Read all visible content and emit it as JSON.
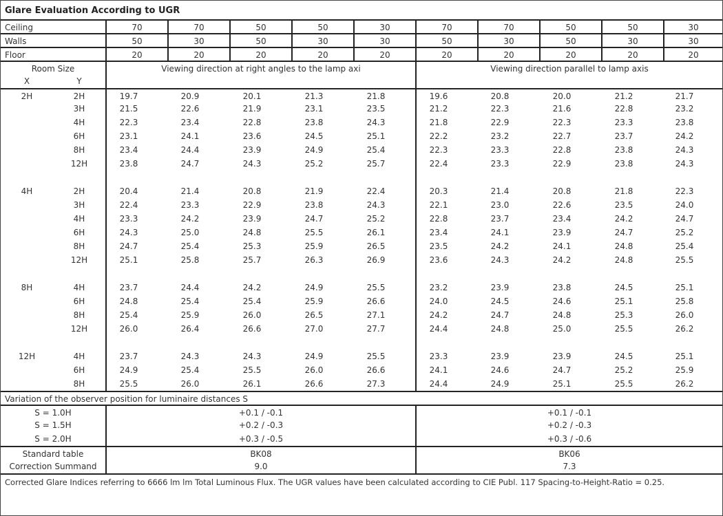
{
  "title": "Glare Evaluation According to UGR",
  "reflectances": [
    {
      "label": "Ceiling",
      "values": [
        "70",
        "70",
        "50",
        "50",
        "30",
        "70",
        "70",
        "50",
        "50",
        "30"
      ]
    },
    {
      "label": "Walls",
      "values": [
        "50",
        "30",
        "50",
        "30",
        "30",
        "50",
        "30",
        "50",
        "30",
        "30"
      ]
    },
    {
      "label": "Floor",
      "values": [
        "20",
        "20",
        "20",
        "20",
        "20",
        "20",
        "20",
        "20",
        "20",
        "20"
      ]
    }
  ],
  "header": {
    "room_size": "Room Size",
    "x": "X",
    "y": "Y",
    "right_angles": "Viewing direction at right angles to the lamp axi",
    "parallel": "Viewing direction parallel to lamp axis"
  },
  "groups": [
    {
      "x": "2H",
      "rows": [
        {
          "y": "2H",
          "values": [
            "19.7",
            "20.9",
            "20.1",
            "21.3",
            "21.8",
            "19.6",
            "20.8",
            "20.0",
            "21.2",
            "21.7"
          ]
        },
        {
          "y": "3H",
          "values": [
            "21.5",
            "22.6",
            "21.9",
            "23.1",
            "23.5",
            "21.2",
            "22.3",
            "21.6",
            "22.8",
            "23.2"
          ]
        },
        {
          "y": "4H",
          "values": [
            "22.3",
            "23.4",
            "22.8",
            "23.8",
            "24.3",
            "21.8",
            "22.9",
            "22.3",
            "23.3",
            "23.8"
          ]
        },
        {
          "y": "6H",
          "values": [
            "23.1",
            "24.1",
            "23.6",
            "24.5",
            "25.1",
            "22.2",
            "23.2",
            "22.7",
            "23.7",
            "24.2"
          ]
        },
        {
          "y": "8H",
          "values": [
            "23.4",
            "24.4",
            "23.9",
            "24.9",
            "25.4",
            "22.3",
            "23.3",
            "22.8",
            "23.8",
            "24.3"
          ]
        },
        {
          "y": "12H",
          "values": [
            "23.8",
            "24.7",
            "24.3",
            "25.2",
            "25.7",
            "22.4",
            "23.3",
            "22.9",
            "23.8",
            "24.3"
          ]
        }
      ]
    },
    {
      "x": "4H",
      "rows": [
        {
          "y": "2H",
          "values": [
            "20.4",
            "21.4",
            "20.8",
            "21.9",
            "22.4",
            "20.3",
            "21.4",
            "20.8",
            "21.8",
            "22.3"
          ]
        },
        {
          "y": "3H",
          "values": [
            "22.4",
            "23.3",
            "22.9",
            "23.8",
            "24.3",
            "22.1",
            "23.0",
            "22.6",
            "23.5",
            "24.0"
          ]
        },
        {
          "y": "4H",
          "values": [
            "23.3",
            "24.2",
            "23.9",
            "24.7",
            "25.2",
            "22.8",
            "23.7",
            "23.4",
            "24.2",
            "24.7"
          ]
        },
        {
          "y": "6H",
          "values": [
            "24.3",
            "25.0",
            "24.8",
            "25.5",
            "26.1",
            "23.4",
            "24.1",
            "23.9",
            "24.7",
            "25.2"
          ]
        },
        {
          "y": "8H",
          "values": [
            "24.7",
            "25.4",
            "25.3",
            "25.9",
            "26.5",
            "23.5",
            "24.2",
            "24.1",
            "24.8",
            "25.4"
          ]
        },
        {
          "y": "12H",
          "values": [
            "25.1",
            "25.8",
            "25.7",
            "26.3",
            "26.9",
            "23.6",
            "24.3",
            "24.2",
            "24.8",
            "25.5"
          ]
        }
      ]
    },
    {
      "x": "8H",
      "rows": [
        {
          "y": "4H",
          "values": [
            "23.7",
            "24.4",
            "24.2",
            "24.9",
            "25.5",
            "23.2",
            "23.9",
            "23.8",
            "24.5",
            "25.1"
          ]
        },
        {
          "y": "6H",
          "values": [
            "24.8",
            "25.4",
            "25.4",
            "25.9",
            "26.6",
            "24.0",
            "24.5",
            "24.6",
            "25.1",
            "25.8"
          ]
        },
        {
          "y": "8H",
          "values": [
            "25.4",
            "25.9",
            "26.0",
            "26.5",
            "27.1",
            "24.2",
            "24.7",
            "24.8",
            "25.3",
            "26.0"
          ]
        },
        {
          "y": "12H",
          "values": [
            "26.0",
            "26.4",
            "26.6",
            "27.0",
            "27.7",
            "24.4",
            "24.8",
            "25.0",
            "25.5",
            "26.2"
          ]
        }
      ]
    },
    {
      "x": "12H",
      "rows": [
        {
          "y": "4H",
          "values": [
            "23.7",
            "24.3",
            "24.3",
            "24.9",
            "25.5",
            "23.3",
            "23.9",
            "23.9",
            "24.5",
            "25.1"
          ]
        },
        {
          "y": "6H",
          "values": [
            "24.9",
            "25.4",
            "25.5",
            "26.0",
            "26.6",
            "24.1",
            "24.6",
            "24.7",
            "25.2",
            "25.9"
          ]
        },
        {
          "y": "8H",
          "values": [
            "25.5",
            "26.0",
            "26.1",
            "26.6",
            "27.3",
            "24.4",
            "24.9",
            "25.1",
            "25.5",
            "26.2"
          ]
        }
      ]
    }
  ],
  "variation": {
    "heading": "Variation of the observer position for luminaire distances S",
    "rows": [
      {
        "label": "S = 1.0H",
        "left": "+0.1 / -0.1",
        "right": "+0.1 / -0.1"
      },
      {
        "label": "S = 1.5H",
        "left": "+0.2 / -0.3",
        "right": "+0.2 / -0.3"
      },
      {
        "label": "S = 2.0H",
        "left": "+0.3 / -0.5",
        "right": "+0.3 / -0.6"
      }
    ]
  },
  "standard": [
    {
      "label": "Standard table",
      "left": "BK08",
      "right": "BK06"
    },
    {
      "label": "Correction Summand",
      "left": "9.0",
      "right": "7.3"
    }
  ],
  "footnote": "Corrected Glare Indices referring to 6666 lm lm Total Luminous Flux. The UGR values have been calculated according to CIE Publ. 117    Spacing-to-Height-Ratio = 0.25."
}
